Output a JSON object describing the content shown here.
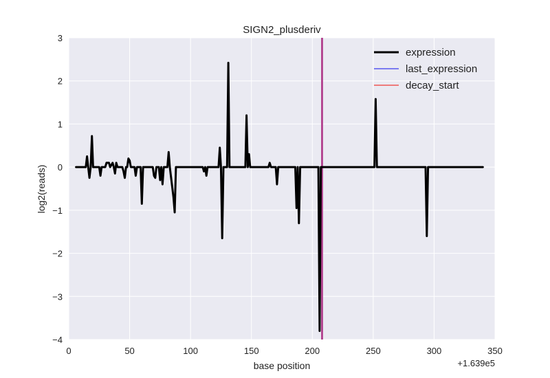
{
  "chart_data": {
    "type": "line",
    "title": "SIGN2_plusderiv",
    "xlabel": "base position",
    "ylabel": "log2(reads)",
    "x_offset_label": "+1.639e5",
    "xlim": [
      0,
      350
    ],
    "ylim": [
      -4,
      3
    ],
    "xticks": [
      0,
      50,
      100,
      150,
      200,
      250,
      300,
      350
    ],
    "yticks": [
      -4,
      -3,
      -2,
      -1,
      0,
      1,
      2,
      3
    ],
    "xtick_labels": [
      "0",
      "50",
      "100",
      "150",
      "200",
      "250",
      "300",
      "350"
    ],
    "ytick_labels": [
      "−4",
      "−3",
      "−2",
      "−1",
      "0",
      "1",
      "2",
      "3"
    ],
    "grid": true,
    "legend_position": "top-right",
    "background_color": "#eaeaf2",
    "series": [
      {
        "name": "expression",
        "color": "#000000",
        "points": [
          [
            6,
            0
          ],
          [
            14,
            0
          ],
          [
            15,
            0.25
          ],
          [
            16,
            0
          ],
          [
            17,
            -0.25
          ],
          [
            18,
            0
          ],
          [
            19,
            0.72
          ],
          [
            20,
            0
          ],
          [
            24,
            0
          ],
          [
            25,
            0
          ],
          [
            26,
            -0.2
          ],
          [
            27,
            0
          ],
          [
            30,
            0
          ],
          [
            31,
            0.1
          ],
          [
            33,
            0.1
          ],
          [
            34,
            0
          ],
          [
            36,
            0.1
          ],
          [
            37,
            0
          ],
          [
            38,
            -0.15
          ],
          [
            39,
            0.1
          ],
          [
            40,
            0
          ],
          [
            44,
            0
          ],
          [
            45,
            -0.1
          ],
          [
            46,
            -0.25
          ],
          [
            47,
            0
          ],
          [
            48,
            0
          ],
          [
            49,
            0.2
          ],
          [
            50,
            0.15
          ],
          [
            51,
            0
          ],
          [
            54,
            0
          ],
          [
            55,
            -0.2
          ],
          [
            56,
            0
          ],
          [
            58,
            0
          ],
          [
            59,
            0
          ],
          [
            60,
            -0.85
          ],
          [
            61,
            0
          ],
          [
            68,
            0
          ],
          [
            69,
            0
          ],
          [
            70,
            -0.2
          ],
          [
            71,
            -0.25
          ],
          [
            72,
            0
          ],
          [
            74,
            0
          ],
          [
            75,
            -0.3
          ],
          [
            76,
            0
          ],
          [
            77,
            -0.4
          ],
          [
            78,
            0
          ],
          [
            81,
            0
          ],
          [
            82,
            0.35
          ],
          [
            83,
            0
          ],
          [
            86,
            -0.7
          ],
          [
            87,
            -1.05
          ],
          [
            88,
            0
          ],
          [
            110,
            0
          ],
          [
            111,
            -0.1
          ],
          [
            112,
            0
          ],
          [
            113,
            -0.2
          ],
          [
            114,
            0
          ],
          [
            123,
            0
          ],
          [
            124,
            0.45
          ],
          [
            125,
            0
          ],
          [
            126,
            -1.65
          ],
          [
            127,
            0
          ],
          [
            130,
            0
          ],
          [
            131,
            2.42
          ],
          [
            132,
            0
          ],
          [
            145,
            0
          ],
          [
            146,
            1.2
          ],
          [
            147,
            0
          ],
          [
            148,
            0.3
          ],
          [
            149,
            0
          ],
          [
            164,
            0
          ],
          [
            165,
            0.1
          ],
          [
            166,
            0
          ],
          [
            170,
            0
          ],
          [
            171,
            -0.4
          ],
          [
            172,
            0
          ],
          [
            186,
            0
          ],
          [
            187,
            -0.95
          ],
          [
            188,
            0
          ],
          [
            189,
            -1.3
          ],
          [
            190,
            0
          ],
          [
            205,
            0
          ],
          [
            206,
            -3.8
          ],
          [
            207,
            0
          ],
          [
            251,
            0
          ],
          [
            252,
            1.58
          ],
          [
            253,
            0
          ],
          [
            293,
            0
          ],
          [
            294,
            -1.6
          ],
          [
            295,
            0
          ],
          [
            340,
            0
          ]
        ]
      },
      {
        "name": "last_expression",
        "color": "#7b7bf0",
        "x_value": 208
      },
      {
        "name": "decay_start",
        "color": "#ee7b7b",
        "x_value": 208
      }
    ],
    "overlap_color": "#b03a8a"
  }
}
